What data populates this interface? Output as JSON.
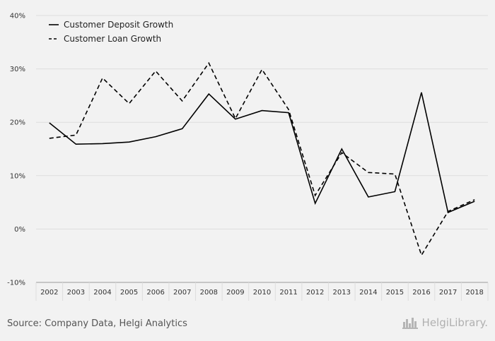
{
  "chart_data": {
    "type": "line",
    "categories": [
      "2002",
      "2003",
      "2004",
      "2005",
      "2006",
      "2007",
      "2008",
      "2009",
      "2010",
      "2011",
      "2012",
      "2013",
      "2014",
      "2015",
      "2016",
      "2017",
      "2018"
    ],
    "series": [
      {
        "name": "Customer Deposit Growth",
        "line_style": "solid",
        "color": "#000000",
        "values": [
          19.9,
          15.9,
          16.0,
          16.3,
          17.3,
          18.8,
          25.3,
          20.6,
          22.2,
          21.8,
          4.8,
          15.0,
          6.0,
          7.0,
          25.6,
          3.1,
          5.2
        ]
      },
      {
        "name": "Customer Loan Growth",
        "line_style": "dashed",
        "color": "#000000",
        "values": [
          17.0,
          17.6,
          28.3,
          23.5,
          29.6,
          24.0,
          31.1,
          20.7,
          29.9,
          22.4,
          6.3,
          14.3,
          10.6,
          10.3,
          -4.9,
          3.3,
          5.5
        ]
      }
    ],
    "yticks": [
      "40%",
      "30%",
      "20%",
      "10%",
      "0%",
      "-10%"
    ],
    "ylim": [
      -10,
      40
    ],
    "y_unit": "%",
    "grid": "horizontal",
    "legend_position": "top-left",
    "title": "",
    "xlabel": "",
    "ylabel": ""
  },
  "footer": {
    "source": "Source: Company Data, Helgi Analytics",
    "brand": "HelgiLibrary.",
    "brand_icon": "city-skyline-icon"
  },
  "colors": {
    "background": "#f2f2f2",
    "grid": "#dddddd",
    "axis": "#999999",
    "line": "#000000"
  }
}
